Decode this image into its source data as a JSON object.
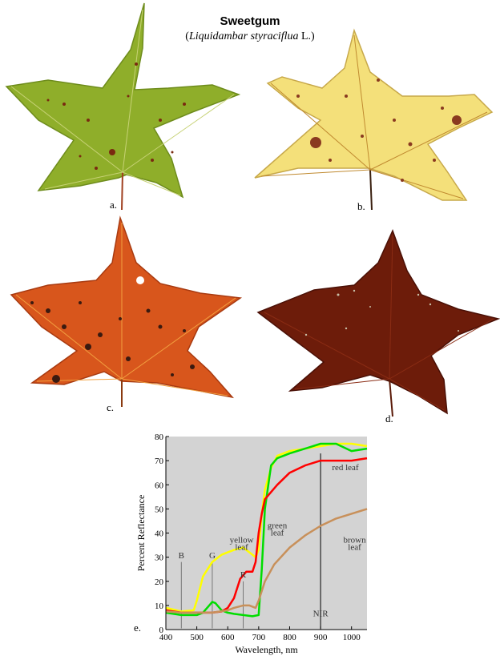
{
  "figure": {
    "title": "Sweetgum",
    "subtitle_open": "(",
    "subtitle_italic": "Liquidambar styraciflua",
    "subtitle_close": " L.)",
    "panel_labels": [
      "a.",
      "b.",
      "c.",
      "d.",
      "e."
    ]
  },
  "colors": {
    "green_leaf": "#8fae2a",
    "yellow_leaf": "#f4e07a",
    "red_leaf": "#d8561c",
    "brown_leaf": "#6d1c0a",
    "chart_bg": "#d3d3d3"
  },
  "chart_data": {
    "type": "line",
    "xlabel": "Wavelength, nm",
    "ylabel": "Percent Reflectance",
    "xlim": [
      400,
      1050
    ],
    "ylim": [
      0,
      80
    ],
    "xticks": [
      400,
      500,
      600,
      700,
      800,
      900,
      1000
    ],
    "yticks": [
      0,
      10,
      20,
      30,
      40,
      50,
      60,
      70,
      80
    ],
    "grid": false,
    "series": [
      {
        "name": "yellow leaf",
        "color": "#ffff00",
        "x": [
          400,
          450,
          490,
          500,
          520,
          550,
          580,
          600,
          620,
          650,
          670,
          690,
          700,
          710,
          720,
          740,
          760,
          800,
          850,
          900,
          950,
          1000,
          1050
        ],
        "y": [
          9,
          7.5,
          8,
          12,
          22,
          28,
          31,
          32,
          33,
          34,
          32,
          30,
          33,
          48,
          58,
          67,
          72,
          74,
          75,
          76,
          77,
          77,
          76
        ]
      },
      {
        "name": "green leaf",
        "color": "#00dd00",
        "x": [
          400,
          450,
          500,
          520,
          540,
          550,
          560,
          580,
          600,
          620,
          650,
          680,
          700,
          710,
          720,
          740,
          760,
          800,
          850,
          900,
          950,
          1000,
          1050
        ],
        "y": [
          7,
          6,
          6,
          7,
          10,
          11.5,
          11,
          8,
          7,
          6.5,
          6,
          5.5,
          6,
          25,
          50,
          68,
          71,
          73,
          75,
          77,
          77,
          74,
          75
        ]
      },
      {
        "name": "red leaf",
        "color": "#ff0000",
        "x": [
          400,
          450,
          500,
          550,
          580,
          600,
          620,
          640,
          660,
          680,
          690,
          700,
          710,
          720,
          740,
          760,
          800,
          850,
          900,
          950,
          1000,
          1050
        ],
        "y": [
          8,
          7,
          7,
          7,
          7.5,
          9,
          13,
          21,
          24,
          24,
          28,
          40,
          48,
          54,
          57,
          60,
          65,
          68,
          70,
          70,
          70,
          71
        ]
      },
      {
        "name": "brown leaf",
        "color": "#c8905a",
        "x": [
          400,
          450,
          500,
          550,
          600,
          620,
          650,
          670,
          690,
          700,
          720,
          750,
          800,
          850,
          900,
          950,
          1000,
          1050
        ],
        "y": [
          7.5,
          7,
          7,
          7,
          8,
          9,
          10,
          10,
          9,
          12,
          20,
          27,
          34,
          39,
          43,
          46,
          48,
          50
        ]
      }
    ],
    "annotations": [
      {
        "text": "B",
        "x": 450,
        "line_top": 28
      },
      {
        "text": "G",
        "x": 550,
        "line_top": 28
      },
      {
        "text": "R",
        "x": 650,
        "line_top": 20
      },
      {
        "text": "NIR",
        "x": 900,
        "line_top": 73
      },
      {
        "text": "yellow",
        "x": 645,
        "y": 36
      },
      {
        "text": "leaf",
        "x": 645,
        "y": 33
      },
      {
        "text": "green",
        "x": 760,
        "y": 42
      },
      {
        "text": "leaf",
        "x": 760,
        "y": 39
      },
      {
        "text": "red leaf",
        "x": 980,
        "y": 66
      },
      {
        "text": "brown",
        "x": 1010,
        "y": 36
      },
      {
        "text": "leaf",
        "x": 1010,
        "y": 33
      }
    ]
  }
}
